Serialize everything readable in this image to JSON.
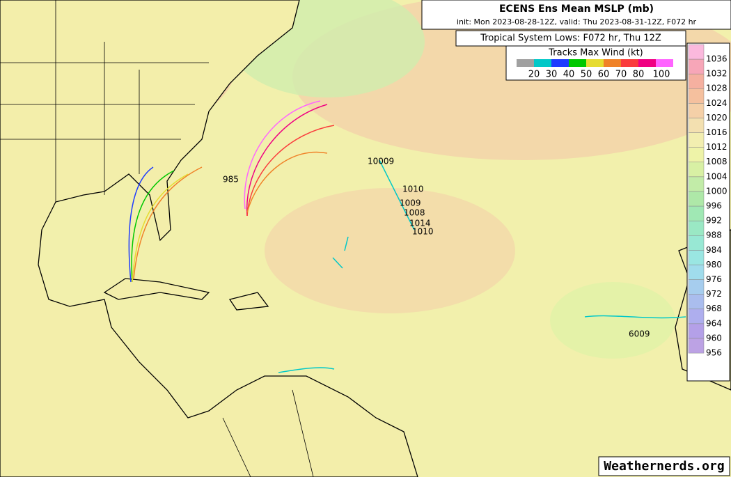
{
  "header": {
    "title": "ECENS Ens Mean MSLP (mb)",
    "subtitle": "init: Mon 2023-08-28-12Z, valid: Thu 2023-08-31-12Z, F072 hr"
  },
  "lows_box": {
    "title": "Tropical System Lows: F072 hr, Thu 12Z"
  },
  "wind_legend": {
    "title": "Tracks Max Wind (kt)",
    "colors": [
      "#a0a0a0",
      "#00c8c8",
      "#1e3cff",
      "#00c800",
      "#e6dc32",
      "#f08228",
      "#fa3c3c",
      "#f00082",
      "#ff64ff"
    ],
    "labels": [
      "20",
      "30",
      "40",
      "50",
      "60",
      "70",
      "80",
      "100"
    ]
  },
  "colorbar": {
    "labels": [
      "1036",
      "1032",
      "1028",
      "1024",
      "1020",
      "1016",
      "1012",
      "1008",
      "1004",
      "1000",
      "996",
      "992",
      "988",
      "984",
      "980",
      "976",
      "972",
      "968",
      "964",
      "960",
      "956"
    ],
    "colors": [
      "#fbb9dd",
      "#f7a6b8",
      "#f5b0a0",
      "#f5c09e",
      "#f5d0a8",
      "#f3e0b0",
      "#f2eeb0",
      "#eef3a8",
      "#d8f0a4",
      "#c2eca8",
      "#aee8a8",
      "#a0e8b4",
      "#9ae8c4",
      "#98e8d4",
      "#9ae6e2",
      "#a0dcec",
      "#a6cdee",
      "#aabdee",
      "#aeaeee",
      "#b4a0e8",
      "#bca2e4"
    ]
  },
  "track_labels": [
    "985",
    "10009",
    "1010",
    "1008",
    "1014",
    "1010",
    "1009",
    "6009"
  ],
  "watermark": "Weathernerds.org"
}
